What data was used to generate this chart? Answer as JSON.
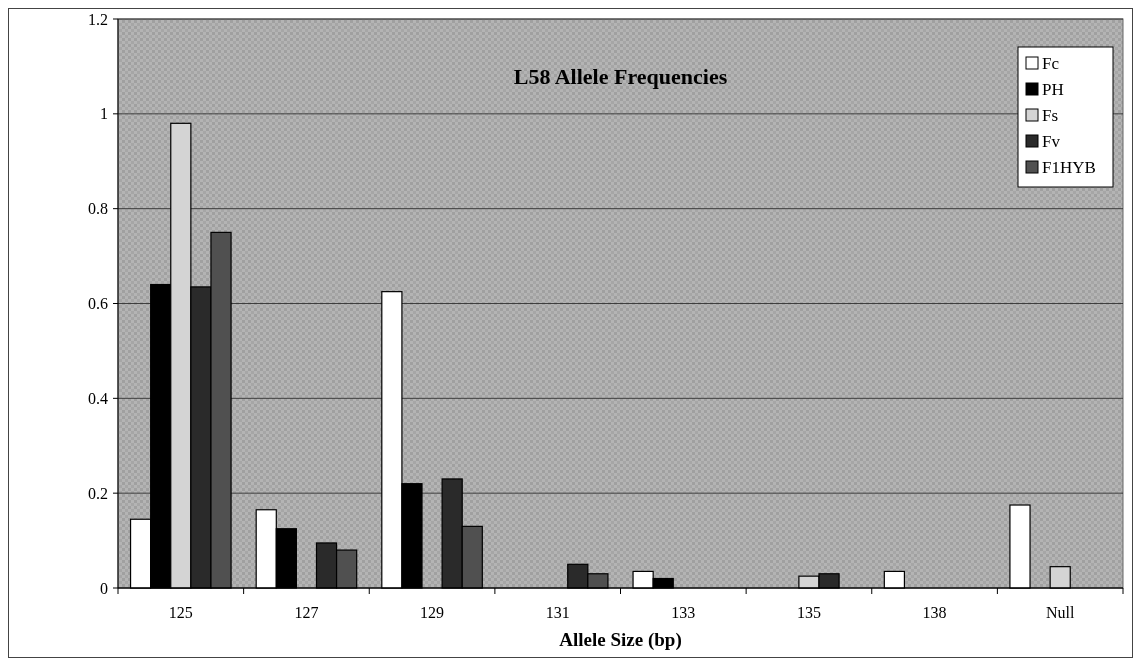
{
  "chart_data": {
    "type": "bar",
    "title": "L58 Allele Frequencies",
    "xlabel": "Allele Size (bp)",
    "categories": [
      "125",
      "127",
      "129",
      "131",
      "133",
      "135",
      "138",
      "Null"
    ],
    "series": [
      {
        "name": "Fc",
        "color": "#ffffff",
        "values": [
          0.145,
          0.165,
          0.625,
          0,
          0.035,
          0,
          0.035,
          0.175
        ]
      },
      {
        "name": "PH",
        "color": "#000000",
        "values": [
          0.64,
          0.125,
          0.22,
          0,
          0.02,
          0,
          0,
          0
        ]
      },
      {
        "name": "Fs",
        "color": "#d4d4d4",
        "values": [
          0.98,
          0,
          0,
          0,
          0,
          0.025,
          0,
          0.045
        ]
      },
      {
        "name": "Fv",
        "color": "#2a2a2a",
        "values": [
          0.635,
          0.095,
          0.23,
          0.05,
          0,
          0.03,
          0,
          0
        ]
      },
      {
        "name": "F1HYB",
        "color": "#505050",
        "values": [
          0.75,
          0.08,
          0.13,
          0.03,
          0,
          0,
          0,
          0
        ]
      }
    ],
    "ylim": [
      0,
      1.2
    ],
    "yticks": [
      0,
      0.2,
      0.4,
      0.6,
      0.8,
      1,
      1.2
    ],
    "grid": "y",
    "legend": "top right"
  }
}
